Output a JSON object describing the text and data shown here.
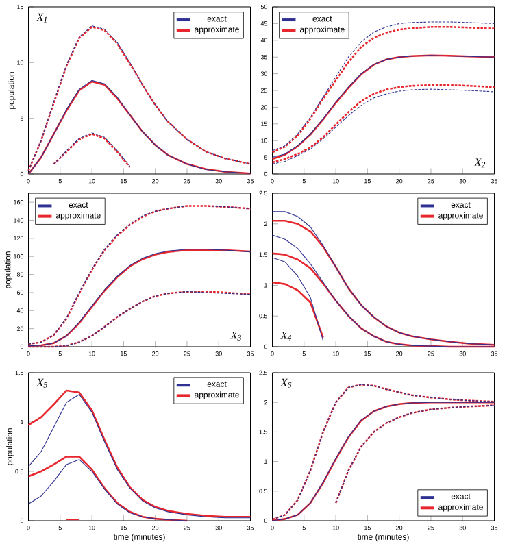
{
  "chart_data": [
    {
      "type": "line",
      "title": "X$_{1}$",
      "ylabel": "population",
      "legend": "top right",
      "marker": "none",
      "grid": false,
      "x": [
        0,
        2,
        4,
        6,
        8,
        10,
        12,
        14,
        16,
        18,
        20,
        22,
        25,
        28,
        31,
        35
      ],
      "xlim": [
        0,
        35
      ],
      "xticks": [
        0,
        5,
        10,
        15,
        20,
        25,
        30,
        35
      ],
      "ylim": [
        0,
        15
      ],
      "yticks": [
        0,
        5,
        10,
        15
      ],
      "series": [
        {
          "name": "exact",
          "color": "#2e3192",
          "line_style": "solid",
          "values": [
            0,
            1.5,
            3.6,
            5.8,
            7.6,
            8.4,
            8.1,
            6.9,
            5.3,
            3.8,
            2.6,
            1.7,
            0.9,
            0.4,
            0.2,
            0.05
          ]
        },
        {
          "name": "approximate",
          "color": "#e8262d",
          "line_style": "solid",
          "values": [
            0,
            1.5,
            3.6,
            5.7,
            7.5,
            8.3,
            8.0,
            6.8,
            5.3,
            3.8,
            2.6,
            1.7,
            0.9,
            0.45,
            0.2,
            0.05
          ]
        },
        {
          "color": "#2e3192",
          "line_style": "dashed",
          "values": [
            0.3,
            3,
            6.5,
            9.8,
            12.3,
            13.3,
            13,
            11.8,
            10,
            8,
            6.2,
            4.7,
            3.1,
            2,
            1.4,
            0.9
          ]
        },
        {
          "color": "#e8262d",
          "line_style": "dashed",
          "values": [
            0.3,
            3,
            6.4,
            9.7,
            12.2,
            13.2,
            12.9,
            11.7,
            9.9,
            8,
            6.2,
            4.7,
            3.1,
            2,
            1.4,
            0.9
          ]
        },
        {
          "color": "#2e3192",
          "line_style": "dashed",
          "values": [
            null,
            null,
            0.9,
            2.1,
            3.2,
            3.7,
            3.3,
            2.1,
            0.7,
            null,
            null,
            null,
            null,
            null,
            null,
            null
          ]
        },
        {
          "color": "#e8262d",
          "line_style": "dashed",
          "values": [
            null,
            null,
            0.9,
            2.0,
            3.1,
            3.6,
            3.2,
            2.0,
            0.6,
            null,
            null,
            null,
            null,
            null,
            null,
            null
          ]
        }
      ]
    },
    {
      "type": "line",
      "title": "X$_{2}$",
      "legend": "top left",
      "marker": "none",
      "grid": false,
      "x": [
        0,
        2,
        4,
        6,
        8,
        10,
        12,
        14,
        16,
        18,
        20,
        22,
        25,
        28,
        31,
        35
      ],
      "xlim": [
        0,
        35
      ],
      "xticks": [
        0,
        5,
        10,
        15,
        20,
        25,
        30,
        35
      ],
      "ylim": [
        0,
        50
      ],
      "yticks": [
        0,
        5,
        10,
        15,
        20,
        25,
        30,
        35,
        40,
        45,
        50
      ],
      "series": [
        {
          "name": "exact",
          "color": "#2e3192",
          "line_style": "solid",
          "values": [
            5,
            6,
            8.5,
            12,
            16.5,
            21.5,
            26,
            30,
            32.8,
            34.3,
            35,
            35.3,
            35.5,
            35.3,
            35.2,
            35
          ]
        },
        {
          "name": "approximate",
          "color": "#e8262d",
          "line_style": "solid",
          "values": [
            4.5,
            5.8,
            8.3,
            11.8,
            16.3,
            21.3,
            25.8,
            29.8,
            32.7,
            34.3,
            35,
            35.3,
            35.5,
            35.4,
            35.2,
            35
          ]
        },
        {
          "color": "#2e3192",
          "line_style": "dashed",
          "values": [
            7,
            8.5,
            12,
            17,
            23,
            29,
            35,
            39.5,
            42.5,
            44,
            45,
            45.3,
            45.5,
            45.5,
            45.3,
            45
          ]
        },
        {
          "color": "#e8262d",
          "line_style": "dashed",
          "values": [
            6.5,
            8.2,
            11.5,
            16.5,
            22.5,
            28,
            33.5,
            38,
            40.8,
            42.3,
            43.2,
            43.6,
            44,
            44,
            43.8,
            43.5
          ]
        },
        {
          "color": "#2e3192",
          "line_style": "dashed",
          "values": [
            3,
            3.8,
            5.5,
            7.5,
            10.5,
            14,
            17.5,
            20.5,
            22.8,
            24,
            24.8,
            25.2,
            25.4,
            25.2,
            25,
            24.6
          ]
        },
        {
          "color": "#e8262d",
          "line_style": "dashed",
          "values": [
            3.5,
            4.5,
            6,
            8,
            11,
            14.8,
            18.5,
            21.8,
            24,
            25.3,
            26,
            26.4,
            26.6,
            26.6,
            26.4,
            26
          ]
        }
      ]
    },
    {
      "type": "line",
      "title": "X$_{3}$",
      "ylabel": "population",
      "legend": "top left",
      "marker": "none",
      "grid": false,
      "x": [
        0,
        2,
        4,
        6,
        8,
        10,
        12,
        14,
        16,
        18,
        20,
        22,
        25,
        28,
        31,
        35
      ],
      "xlim": [
        0,
        35
      ],
      "xticks": [
        0,
        5,
        10,
        15,
        20,
        25,
        30,
        35
      ],
      "ylim": [
        0,
        170
      ],
      "yticks": [
        0,
        20,
        40,
        60,
        80,
        100,
        120,
        140,
        160
      ],
      "series": [
        {
          "name": "exact",
          "color": "#2e3192",
          "line_style": "solid",
          "values": [
            1,
            1.5,
            4,
            12,
            27,
            45,
            63,
            78,
            90,
            98,
            103,
            106,
            108,
            108,
            107,
            105
          ]
        },
        {
          "name": "approximate",
          "color": "#e8262d",
          "line_style": "solid",
          "values": [
            1,
            1.5,
            4,
            12,
            26,
            44,
            62,
            77,
            89,
            97,
            102,
            105,
            107,
            107.5,
            107,
            105.5
          ]
        },
        {
          "color": "#2e3192",
          "line_style": "dashed",
          "values": [
            3,
            5,
            13,
            32,
            60,
            86,
            108,
            124,
            136,
            145,
            150,
            153,
            156,
            156,
            155,
            153
          ]
        },
        {
          "color": "#e8262d",
          "line_style": "dashed",
          "values": [
            3,
            5,
            13,
            31,
            59,
            85,
            107,
            123,
            135,
            144,
            150,
            153,
            156,
            156,
            155,
            153
          ]
        },
        {
          "color": "#2e3192",
          "line_style": "dashed",
          "values": [
            0,
            0,
            0,
            1,
            5,
            12,
            22,
            33,
            42,
            50,
            56,
            59,
            61,
            60,
            59,
            58
          ]
        },
        {
          "color": "#e8262d",
          "line_style": "dashed",
          "values": [
            0,
            0,
            0,
            1,
            5,
            12,
            22,
            33,
            42,
            50,
            56,
            59,
            61,
            61,
            60,
            58
          ]
        }
      ]
    },
    {
      "type": "line",
      "title": "X$_{4}$",
      "legend": "top right",
      "marker": "none",
      "grid": false,
      "x": [
        0,
        2,
        4,
        6,
        8,
        10,
        12,
        14,
        16,
        18,
        20,
        22,
        25,
        28,
        31,
        35
      ],
      "xlim": [
        0,
        35
      ],
      "xticks": [
        0,
        5,
        10,
        15,
        20,
        25,
        30,
        35
      ],
      "ylim": [
        0,
        2.5
      ],
      "yticks": [
        0,
        0.5,
        1,
        1.5,
        2,
        2.5
      ],
      "series": [
        {
          "name": "exact",
          "color": "#2e3192",
          "line_style": "solid",
          "values": [
            1.82,
            1.75,
            1.6,
            1.35,
            1.05,
            0.75,
            0.5,
            0.3,
            0.17,
            0.08,
            0.04,
            0.02,
            0.01,
            0,
            0,
            0
          ]
        },
        {
          "name": "approximate",
          "color": "#e8262d",
          "line_style": "solid",
          "values": [
            1.52,
            1.5,
            1.42,
            1.28,
            1.03,
            0.75,
            0.5,
            0.3,
            0.17,
            0.08,
            0.04,
            0.02,
            0.01,
            0,
            0,
            0
          ]
        },
        {
          "color": "#2e3192",
          "line_style": "solid",
          "values": [
            2.2,
            2.2,
            2.12,
            1.95,
            1.65,
            1.3,
            0.95,
            0.68,
            0.48,
            0.33,
            0.23,
            0.17,
            0.12,
            0.08,
            0.05,
            0.03
          ]
        },
        {
          "color": "#e8262d",
          "line_style": "solid",
          "values": [
            2.05,
            2.05,
            2,
            1.88,
            1.63,
            1.3,
            0.95,
            0.68,
            0.48,
            0.33,
            0.23,
            0.17,
            0.12,
            0.08,
            0.05,
            0.03
          ]
        },
        {
          "color": "#2e3192",
          "line_style": "solid",
          "values": [
            1.45,
            1.38,
            1.15,
            0.8,
            0.1,
            null,
            null,
            null,
            null,
            null,
            null,
            null,
            null,
            null,
            null,
            null
          ]
        },
        {
          "color": "#e8262d",
          "line_style": "solid",
          "values": [
            1.05,
            1.02,
            0.92,
            0.72,
            0.15,
            null,
            null,
            null,
            null,
            null,
            null,
            null,
            null,
            null,
            null,
            null
          ]
        }
      ]
    },
    {
      "type": "line",
      "title": "X$_{5}$",
      "ylabel": "population",
      "xlabel": "time (minutes)",
      "legend": "top right",
      "marker": "none",
      "grid": false,
      "x": [
        0,
        2,
        4,
        6,
        8,
        10,
        12,
        14,
        16,
        18,
        20,
        22,
        25,
        28,
        31,
        35
      ],
      "xlim": [
        0,
        35
      ],
      "xticks": [
        0,
        5,
        10,
        15,
        20,
        25,
        30,
        35
      ],
      "ylim": [
        0,
        1.5
      ],
      "yticks": [
        0,
        0.5,
        1,
        1.5
      ],
      "series": [
        {
          "name": "exact",
          "color": "#2e3192",
          "line_style": "solid",
          "values": [
            0.17,
            0.25,
            0.4,
            0.57,
            0.62,
            0.5,
            0.32,
            0.17,
            0.08,
            0.04,
            0.02,
            0.01,
            0,
            null,
            null,
            null
          ]
        },
        {
          "name": "approximate",
          "color": "#e8262d",
          "line_style": "solid",
          "values": [
            0.45,
            0.5,
            0.57,
            0.65,
            0.65,
            0.52,
            0.33,
            0.18,
            0.09,
            0.04,
            0.02,
            0.01,
            0,
            null,
            null,
            null
          ]
        },
        {
          "color": "#2e3192",
          "line_style": "solid",
          "values": [
            0.55,
            0.7,
            0.95,
            1.2,
            1.28,
            1.1,
            0.8,
            0.52,
            0.33,
            0.2,
            0.13,
            0.09,
            0.06,
            0.04,
            0.03,
            0.03
          ]
        },
        {
          "color": "#e8262d",
          "line_style": "solid",
          "values": [
            0.97,
            1.05,
            1.18,
            1.32,
            1.3,
            1.12,
            0.82,
            0.54,
            0.34,
            0.21,
            0.14,
            0.1,
            0.07,
            0.05,
            0.04,
            0.04
          ]
        },
        {
          "color": "#e8262d",
          "line_style": "solid",
          "values": [
            null,
            null,
            null,
            0.01,
            0.01,
            null,
            null,
            null,
            null,
            null,
            null,
            null,
            null,
            null,
            null,
            null
          ]
        }
      ]
    },
    {
      "type": "line",
      "title": "X$_{6}$",
      "xlabel": "time (minutes)",
      "legend": "bottom right",
      "marker": "none",
      "grid": false,
      "x": [
        0,
        2,
        4,
        6,
        8,
        10,
        12,
        14,
        16,
        18,
        20,
        22,
        25,
        28,
        31,
        35
      ],
      "xlim": [
        0,
        35
      ],
      "xticks": [
        0,
        5,
        10,
        15,
        20,
        25,
        30,
        35
      ],
      "ylim": [
        0,
        2.5
      ],
      "yticks": [
        0,
        0.5,
        1,
        1.5,
        2,
        2.5
      ],
      "series": [
        {
          "name": "exact",
          "color": "#2e3192",
          "line_style": "solid",
          "values": [
            0,
            0.03,
            0.1,
            0.3,
            0.65,
            1.05,
            1.42,
            1.7,
            1.85,
            1.93,
            1.97,
            1.99,
            2,
            2,
            2,
            2
          ]
        },
        {
          "name": "approximate",
          "color": "#e8262d",
          "line_style": "solid",
          "values": [
            0,
            0.03,
            0.1,
            0.3,
            0.64,
            1.04,
            1.41,
            1.69,
            1.85,
            1.93,
            1.97,
            1.99,
            2,
            2,
            2,
            2
          ]
        },
        {
          "color": "#2e3192",
          "line_style": "dashed",
          "values": [
            0.02,
            0.1,
            0.35,
            0.85,
            1.5,
            2,
            2.25,
            2.3,
            2.28,
            2.22,
            2.17,
            2.12,
            2.08,
            2.05,
            2.03,
            2.01
          ]
        },
        {
          "color": "#e8262d",
          "line_style": "dashed",
          "values": [
            0.02,
            0.1,
            0.35,
            0.85,
            1.5,
            2,
            2.25,
            2.3,
            2.28,
            2.22,
            2.17,
            2.12,
            2.08,
            2.05,
            2.03,
            2.01
          ]
        },
        {
          "color": "#2e3192",
          "line_style": "dashed",
          "values": [
            null,
            null,
            null,
            null,
            null,
            0.3,
            0.85,
            1.25,
            1.5,
            1.65,
            1.75,
            1.82,
            1.88,
            1.91,
            1.93,
            1.95
          ]
        },
        {
          "color": "#e8262d",
          "line_style": "dashed",
          "values": [
            null,
            null,
            null,
            null,
            null,
            0.3,
            0.85,
            1.25,
            1.5,
            1.65,
            1.75,
            1.82,
            1.88,
            1.91,
            1.93,
            1.95
          ]
        }
      ]
    }
  ]
}
